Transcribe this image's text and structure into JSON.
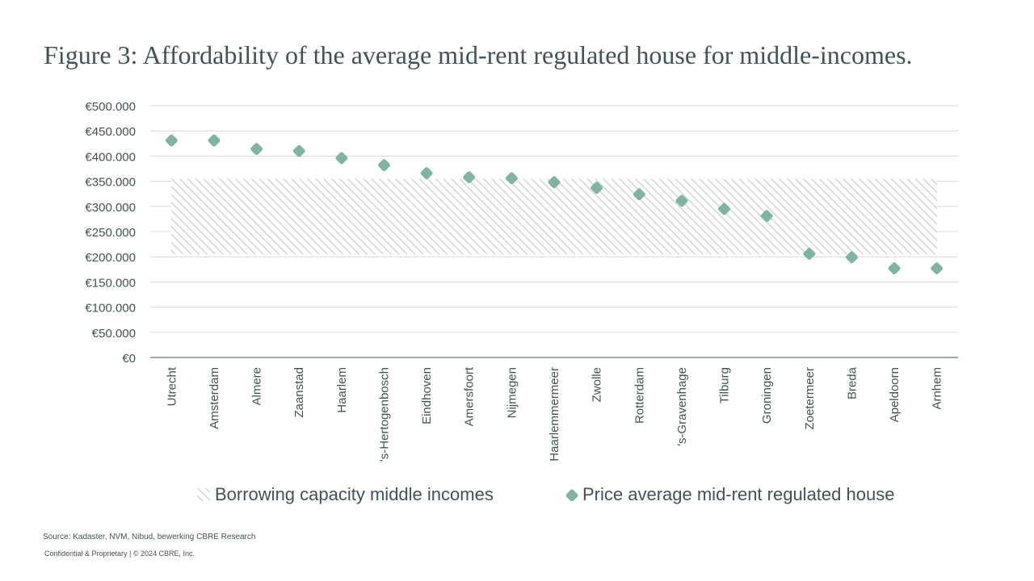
{
  "title": "Figure 3: Affordability of the average mid-rent regulated house for middle-incomes.",
  "colors": {
    "marker": "#7fb3a2",
    "hatch": "#c4c8cb",
    "grid": "#d9d9d9",
    "axis": "#435254",
    "text": "#435254"
  },
  "chart_data": {
    "type": "scatter",
    "title": "",
    "xlabel": "",
    "ylabel": "",
    "ylim": [
      0,
      500000
    ],
    "ytick_labels": [
      "€0",
      "€50.000",
      "€100.000",
      "€150.000",
      "€200.000",
      "€250.000",
      "€300.000",
      "€350.000",
      "€400.000",
      "€450.000",
      "€500.000"
    ],
    "ytick_values": [
      0,
      50000,
      100000,
      150000,
      200000,
      250000,
      300000,
      350000,
      400000,
      450000,
      500000
    ],
    "grid": true,
    "legend_position": "bottom",
    "categories": [
      "Utrecht",
      "Amsterdam",
      "Almere",
      "Zaanstad",
      "Haarlem",
      "'s-Hertogenbosch",
      "Eindhoven",
      "Amersfoort",
      "Nijmegen",
      "Haarlemmermeer",
      "Zwolle",
      "Rotterdam",
      "'s-Gravenhage",
      "Tilburg",
      "Groningen",
      "Zoetermeer",
      "Breda",
      "Apeldoorn",
      "Arnhem"
    ],
    "series": [
      {
        "name": "Price average mid-rent regulated house",
        "type": "scatter",
        "values": [
          431000,
          431000,
          414000,
          410000,
          396000,
          382000,
          366000,
          358000,
          356000,
          348000,
          337000,
          324000,
          311000,
          295000,
          281000,
          206000,
          199000,
          177000,
          177000
        ]
      }
    ],
    "bands": [
      {
        "name": "Borrowing capacity middle incomes",
        "type": "hatched-band",
        "y_min": 205000,
        "y_max": 355000
      }
    ]
  },
  "source": "Source: Kadaster, NVM, Nibud, bewerking CBRE Research",
  "confidential": "Confidential & Proprietary | © 2024 CBRE, Inc."
}
